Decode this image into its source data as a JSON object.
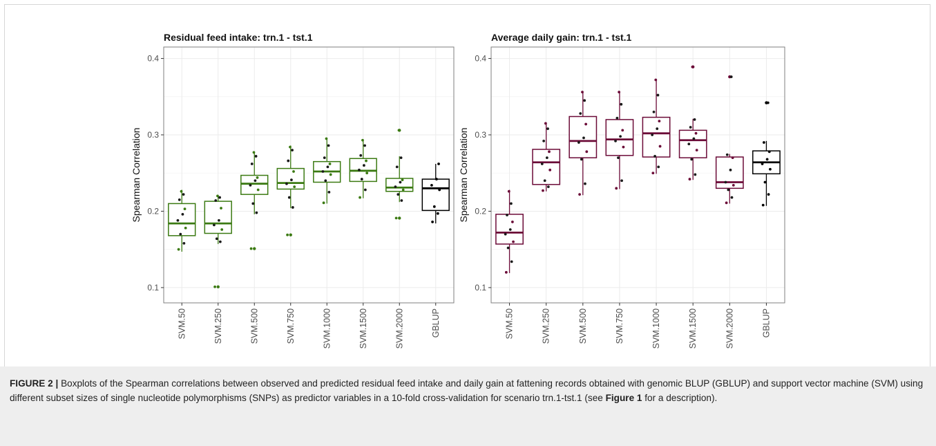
{
  "figure": {
    "caption_label": "FIGURE 2 | ",
    "caption_part1": "Boxplots of the Spearman correlations between observed and predicted residual feed intake and daily gain at fattening records obtained with genomic BLUP (GBLUP) and support vector machine (SVM) using different subset sizes of single nucleotide polymorphisms (SNPs) as predictor variables in a 10-fold cross-validation for scenario trn.1-tst.1 (see ",
    "caption_ref": "Figure 1",
    "caption_part2": " for a description)."
  },
  "colors": {
    "rfi_box": "#3b7a12",
    "adg_box": "#6b0a37",
    "gblup_box": "#000000",
    "point": "#1a1a1a",
    "grid": "#ebebeb",
    "panel_border": "#7f7f7f"
  },
  "chart_data": [
    {
      "type": "boxplot",
      "title": "Residual feed intake: trn.1 - tst.1",
      "xlabel": "",
      "ylabel": "Spearman Correlation",
      "ylim": [
        0.08,
        0.415
      ],
      "yticks": [
        "0.1",
        "0.2",
        "0.3",
        "0.4"
      ],
      "categories": [
        "SVM.50",
        "SVM.250",
        "SVM.500",
        "SVM.750",
        "SVM.1000",
        "SVM.1500",
        "SVM.2000",
        "GBLUP"
      ],
      "grid": true,
      "boxes": [
        {
          "min": 0.147,
          "q1": 0.168,
          "median": 0.184,
          "q3": 0.21,
          "max": 0.228,
          "outliers": [],
          "points": [
            0.15,
            0.158,
            0.17,
            0.178,
            0.188,
            0.196,
            0.203,
            0.215,
            0.222,
            0.226
          ]
        },
        {
          "min": 0.157,
          "q1": 0.171,
          "median": 0.184,
          "q3": 0.213,
          "max": 0.221,
          "outliers": [
            0.101
          ],
          "points": [
            0.101,
            0.16,
            0.164,
            0.176,
            0.182,
            0.188,
            0.204,
            0.214,
            0.218,
            0.22
          ]
        },
        {
          "min": 0.196,
          "q1": 0.222,
          "median": 0.236,
          "q3": 0.247,
          "max": 0.278,
          "outliers": [
            0.151
          ],
          "points": [
            0.151,
            0.198,
            0.21,
            0.228,
            0.234,
            0.24,
            0.244,
            0.262,
            0.272,
            0.277
          ]
        },
        {
          "min": 0.204,
          "q1": 0.229,
          "median": 0.237,
          "q3": 0.256,
          "max": 0.286,
          "outliers": [
            0.169
          ],
          "points": [
            0.169,
            0.205,
            0.218,
            0.232,
            0.236,
            0.241,
            0.252,
            0.266,
            0.28,
            0.284
          ]
        },
        {
          "min": 0.21,
          "q1": 0.238,
          "median": 0.252,
          "q3": 0.265,
          "max": 0.296,
          "outliers": [],
          "points": [
            0.211,
            0.225,
            0.24,
            0.248,
            0.252,
            0.258,
            0.262,
            0.27,
            0.286,
            0.295
          ]
        },
        {
          "min": 0.217,
          "q1": 0.239,
          "median": 0.253,
          "q3": 0.269,
          "max": 0.294,
          "outliers": [],
          "points": [
            0.218,
            0.228,
            0.242,
            0.25,
            0.254,
            0.26,
            0.266,
            0.273,
            0.286,
            0.293
          ]
        },
        {
          "min": 0.212,
          "q1": 0.226,
          "median": 0.231,
          "q3": 0.243,
          "max": 0.272,
          "outliers": [
            0.191,
            0.306
          ],
          "points": [
            0.191,
            0.214,
            0.222,
            0.228,
            0.232,
            0.238,
            0.241,
            0.258,
            0.27,
            0.306
          ]
        },
        {
          "min": 0.184,
          "q1": 0.201,
          "median": 0.23,
          "q3": 0.242,
          "max": 0.262,
          "outliers": [],
          "points": [
            0.186,
            0.197,
            0.206,
            0.228,
            0.234,
            0.242,
            0.262
          ]
        }
      ]
    },
    {
      "type": "boxplot",
      "title": "Average daily gain: trn.1 - tst.1",
      "xlabel": "",
      "ylabel": "Spearman Correlation",
      "ylim": [
        0.08,
        0.415
      ],
      "yticks": [
        "0.1",
        "0.2",
        "0.3",
        "0.4"
      ],
      "categories": [
        "SVM.50",
        "SVM.250",
        "SVM.500",
        "SVM.750",
        "SVM.1000",
        "SVM.1500",
        "SVM.2000",
        "GBLUP"
      ],
      "grid": true,
      "boxes": [
        {
          "min": 0.119,
          "q1": 0.157,
          "median": 0.172,
          "q3": 0.196,
          "max": 0.228,
          "outliers": [],
          "points": [
            0.12,
            0.134,
            0.152,
            0.16,
            0.17,
            0.176,
            0.186,
            0.195,
            0.21,
            0.226
          ]
        },
        {
          "min": 0.226,
          "q1": 0.235,
          "median": 0.264,
          "q3": 0.281,
          "max": 0.316,
          "outliers": [],
          "points": [
            0.227,
            0.232,
            0.24,
            0.254,
            0.262,
            0.27,
            0.278,
            0.292,
            0.308,
            0.315
          ]
        },
        {
          "min": 0.221,
          "q1": 0.27,
          "median": 0.292,
          "q3": 0.324,
          "max": 0.357,
          "outliers": [],
          "points": [
            0.222,
            0.236,
            0.268,
            0.278,
            0.29,
            0.296,
            0.314,
            0.328,
            0.345,
            0.356
          ]
        },
        {
          "min": 0.229,
          "q1": 0.273,
          "median": 0.294,
          "q3": 0.32,
          "max": 0.357,
          "outliers": [],
          "points": [
            0.23,
            0.24,
            0.27,
            0.284,
            0.292,
            0.298,
            0.306,
            0.322,
            0.34,
            0.356
          ]
        },
        {
          "min": 0.249,
          "q1": 0.271,
          "median": 0.302,
          "q3": 0.323,
          "max": 0.373,
          "outliers": [],
          "points": [
            0.25,
            0.258,
            0.272,
            0.285,
            0.3,
            0.308,
            0.318,
            0.33,
            0.352,
            0.372
          ]
        },
        {
          "min": 0.241,
          "q1": 0.27,
          "median": 0.293,
          "q3": 0.306,
          "max": 0.321,
          "outliers": [
            0.389
          ],
          "points": [
            0.242,
            0.248,
            0.268,
            0.28,
            0.288,
            0.295,
            0.302,
            0.31,
            0.32,
            0.389
          ]
        },
        {
          "min": 0.21,
          "q1": 0.23,
          "median": 0.238,
          "q3": 0.271,
          "max": 0.275,
          "outliers": [
            0.376
          ],
          "points": [
            0.211,
            0.218,
            0.228,
            0.234,
            0.238,
            0.254,
            0.27,
            0.274,
            0.376
          ]
        },
        {
          "min": 0.207,
          "q1": 0.249,
          "median": 0.264,
          "q3": 0.279,
          "max": 0.292,
          "outliers": [
            0.342
          ],
          "points": [
            0.208,
            0.222,
            0.238,
            0.255,
            0.262,
            0.268,
            0.278,
            0.29,
            0.342
          ]
        }
      ]
    }
  ]
}
